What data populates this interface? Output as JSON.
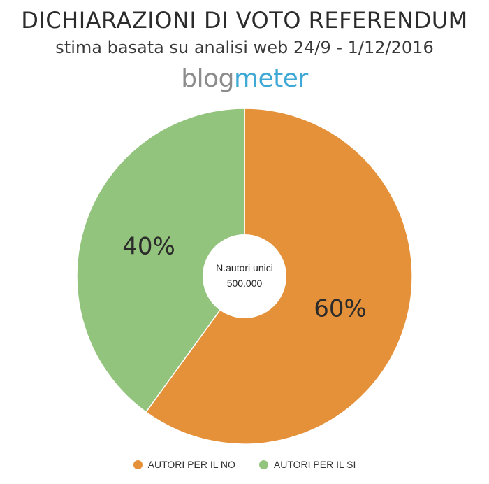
{
  "logo": {
    "part1": "blog",
    "part2": "meter"
  },
  "chart_data": {
    "type": "pie",
    "title": "DICHIARAZIONI DI VOTO REFERENDUM",
    "subtitle": "stima basata su analisi web 24/9 - 1/12/2016",
    "center_label": {
      "line1": "N.autori unici",
      "line2": "500.000"
    },
    "slices": [
      {
        "name": "AUTORI PER IL NO",
        "value": 60,
        "label": "60%",
        "color": "#e5913a"
      },
      {
        "name": "AUTORI PER IL SI",
        "value": 40,
        "label": "40%",
        "color": "#93c47d"
      }
    ],
    "legend_position": "bottom"
  }
}
